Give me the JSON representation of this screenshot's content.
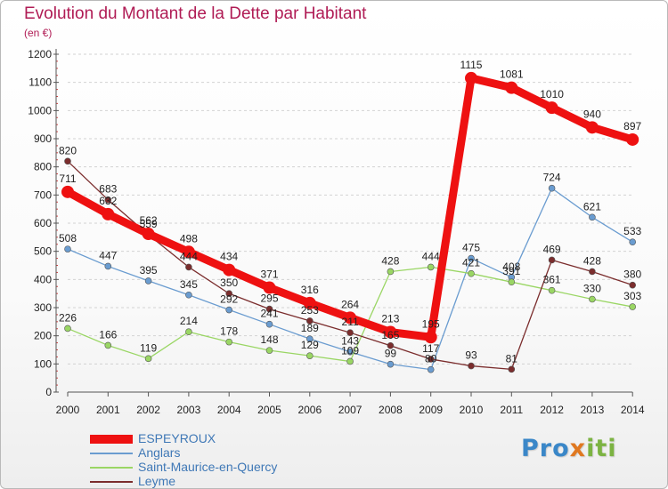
{
  "title": "Evolution du Montant de la Dette par Habitant",
  "unit": "(en €)",
  "logo": {
    "parts": [
      "Pro",
      "x",
      "iti"
    ],
    "colors": [
      "#3a87c8",
      "#e07820",
      "#7cb342"
    ]
  },
  "chart_data": {
    "type": "line",
    "x": [
      "2000",
      "2001",
      "2002",
      "2003",
      "2004",
      "2005",
      "2006",
      "2007",
      "2008",
      "2009",
      "2010",
      "2011",
      "2012",
      "2013",
      "2014"
    ],
    "ylim": [
      0,
      1200
    ],
    "yticks": [
      "0",
      "100",
      "200",
      "300",
      "400",
      "500",
      "600",
      "700",
      "800",
      "900",
      "1000",
      "1100",
      "1200"
    ],
    "grid": true,
    "legend_position": "bottom-left",
    "series": [
      {
        "name": "ESPEYROUX",
        "color": "#ee1111",
        "width": 9,
        "marker": 7,
        "values": [
          711,
          632,
          562,
          498,
          434,
          371,
          316,
          264,
          213,
          195,
          1115,
          1081,
          1010,
          940,
          897
        ],
        "labels": [
          "711",
          "632",
          "562",
          "498",
          "434",
          "371",
          "316",
          "264",
          "213",
          "195",
          "1115",
          "1081",
          "1010",
          "940",
          "897"
        ]
      },
      {
        "name": "Anglars",
        "color": "#6a9cd0",
        "width": 1.3,
        "marker": 3.5,
        "values": [
          508,
          447,
          395,
          345,
          292,
          241,
          189,
          143,
          99,
          80,
          475,
          408,
          724,
          621,
          533
        ],
        "labels": [
          "508",
          "447",
          "395",
          "345",
          "292",
          "241",
          "189",
          "143",
          "99",
          "80",
          "475",
          "408",
          "724",
          "621",
          "533"
        ]
      },
      {
        "name": "Saint-Maurice-en-Quercy",
        "color": "#9ad664",
        "width": 1.3,
        "marker": 3.5,
        "values": [
          226,
          166,
          119,
          214,
          178,
          148,
          129,
          109,
          428,
          444,
          421,
          391,
          361,
          330,
          303
        ],
        "labels": [
          "226",
          "166",
          "119",
          "214",
          "178",
          "148",
          "129",
          "109",
          "428",
          "444",
          "421",
          "391",
          "361",
          "330",
          "303"
        ]
      },
      {
        "name": "Leyme",
        "color": "#7b2d2d",
        "width": 1.3,
        "marker": 3.5,
        "values": [
          820,
          683,
          559,
          444,
          350,
          295,
          253,
          211,
          165,
          117,
          93,
          81,
          469,
          428,
          380
        ],
        "labels": [
          "820",
          "683",
          "559",
          "444",
          "350",
          "295",
          "253",
          "211",
          "165",
          "117",
          "93",
          "81",
          "469",
          "428",
          "380"
        ]
      }
    ]
  }
}
